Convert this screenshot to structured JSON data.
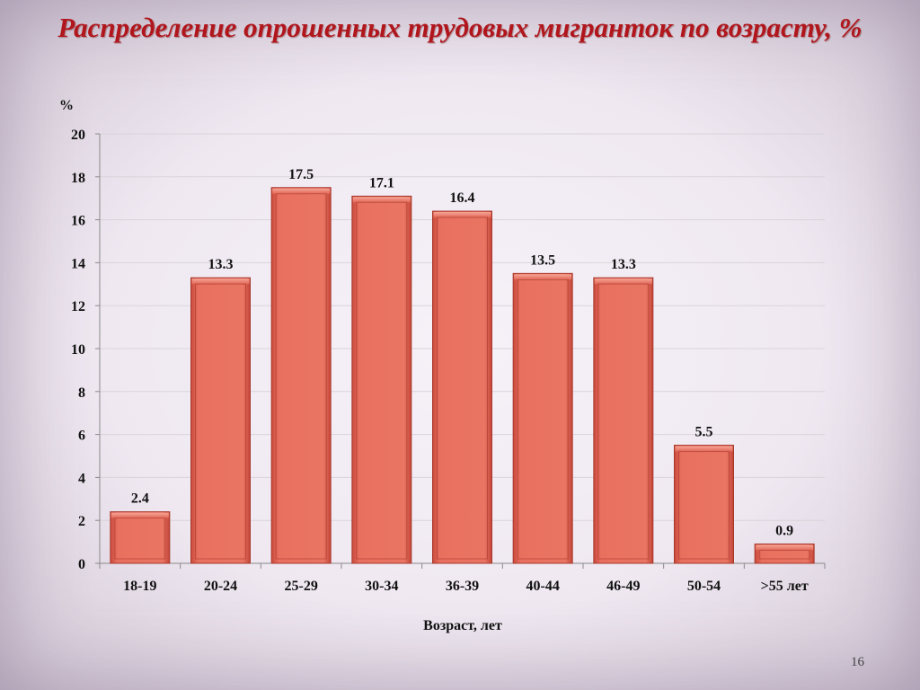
{
  "title": "Распределение опрошенных трудовых мигранток по возрасту, %",
  "page_number": "16",
  "chart_data": {
    "type": "bar",
    "title": "Распределение опрошенных трудовых мигранток по возрасту, %",
    "xlabel": "Возраст, лет",
    "ylabel": "%",
    "categories": [
      "18-19",
      "20-24",
      "25-29",
      "30-34",
      "36-39",
      "40-44",
      "46-49",
      "50-54",
      ">55 лет"
    ],
    "values": [
      2.4,
      13.3,
      17.5,
      17.1,
      16.4,
      13.5,
      13.3,
      5.5,
      0.9
    ],
    "data_labels": [
      "2.4",
      "13.3",
      "17.5",
      "17.1",
      "16.4",
      "13.5",
      "13.3",
      "5.5",
      "0.9"
    ],
    "ylim": [
      0,
      20
    ],
    "yticks": [
      0,
      2,
      4,
      6,
      8,
      10,
      12,
      14,
      16,
      18,
      20
    ],
    "grid": true,
    "legend": "none",
    "bar_color": "#e8705f"
  }
}
